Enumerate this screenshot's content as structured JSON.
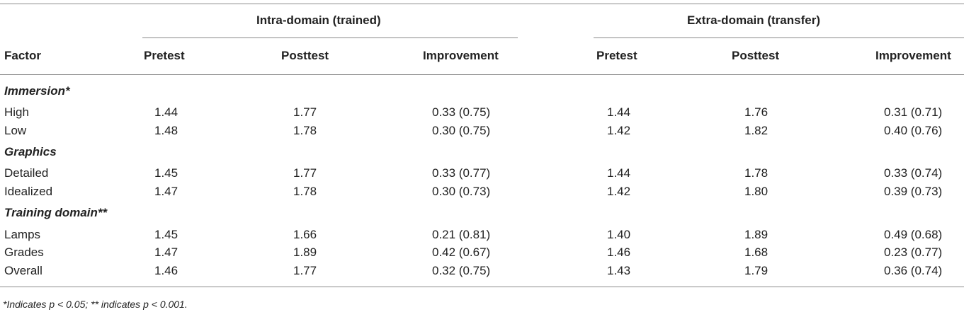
{
  "groups": [
    {
      "label": "Intra-domain (trained)"
    },
    {
      "label": "Extra-domain (transfer)"
    }
  ],
  "columns": [
    "Factor",
    "Pretest",
    "Posttest",
    "Improvement",
    "Pretest",
    "Posttest",
    "Improvement"
  ],
  "sections": [
    {
      "label": "Immersion*",
      "rows": [
        {
          "cells": [
            "High",
            "1.44",
            "1.77",
            "0.33 (0.75)",
            "1.44",
            "1.76",
            "0.31 (0.71)"
          ]
        },
        {
          "cells": [
            "Low",
            "1.48",
            "1.78",
            "0.30 (0.75)",
            "1.42",
            "1.82",
            "0.40 (0.76)"
          ]
        }
      ]
    },
    {
      "label": "Graphics",
      "rows": [
        {
          "cells": [
            "Detailed",
            "1.45",
            "1.77",
            "0.33 (0.77)",
            "1.44",
            "1.78",
            "0.33 (0.74)"
          ]
        },
        {
          "cells": [
            "Idealized",
            "1.47",
            "1.78",
            "0.30 (0.73)",
            "1.42",
            "1.80",
            "0.39 (0.73)"
          ]
        }
      ]
    },
    {
      "label": "Training domain**",
      "rows": [
        {
          "cells": [
            "Lamps",
            "1.45",
            "1.66",
            "0.21 (0.81)",
            "1.40",
            "1.89",
            "0.49 (0.68)"
          ]
        },
        {
          "cells": [
            "Grades",
            "1.47",
            "1.89",
            "0.42 (0.67)",
            "1.46",
            "1.68",
            "0.23 (0.77)"
          ]
        },
        {
          "cells": [
            "Overall",
            "1.46",
            "1.77",
            "0.32 (0.75)",
            "1.43",
            "1.79",
            "0.36 (0.74)"
          ]
        }
      ]
    }
  ],
  "footnote": "*Indicates p < 0.05; ** indicates p < 0.001."
}
